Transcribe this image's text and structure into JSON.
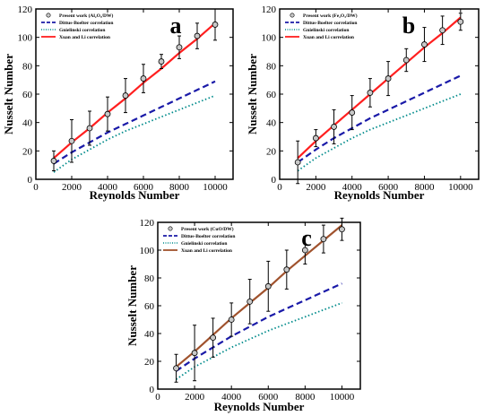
{
  "colors": {
    "xuan_li": "#ff1f1f",
    "xuan_li_c": "#a0522d",
    "dittus": "#1a1aa8",
    "gnielinski": "#008b8b",
    "marker": "#c8c8c8",
    "axis": "#000000"
  },
  "chart_data": [
    {
      "type": "line",
      "panel_letter": "a",
      "xlabel": "Reynolds Number",
      "ylabel": "Nusselt Number",
      "xlim": [
        0,
        11000
      ],
      "ylim": [
        0,
        120
      ],
      "xticks": [
        0,
        2000,
        4000,
        6000,
        8000,
        10000
      ],
      "yticks": [
        0,
        20,
        40,
        60,
        80,
        100,
        120
      ],
      "legend_position": "top-left",
      "series": [
        {
          "name": "Present work (Al₂O₃/DW)",
          "style": "markers-errorbars",
          "x": [
            1000,
            2000,
            3000,
            4000,
            5000,
            6000,
            7000,
            8000,
            9000,
            10000
          ],
          "values": [
            13,
            27,
            36,
            46,
            59,
            71,
            83,
            93,
            101,
            109
          ],
          "err": [
            7,
            15,
            12,
            12,
            12,
            10,
            5,
            8,
            9,
            11
          ]
        },
        {
          "name": "Dittus-Boelter correlation",
          "style": "dashed",
          "x": [
            1000,
            2000,
            3000,
            4000,
            5000,
            6000,
            7000,
            8000,
            9000,
            10000
          ],
          "values": [
            11,
            19,
            26,
            33,
            39,
            45,
            51,
            57,
            63,
            69
          ]
        },
        {
          "name": "Gnielinski correlation",
          "style": "dotted",
          "x": [
            1000,
            2000,
            3000,
            4000,
            5000,
            6000,
            7000,
            8000,
            9000,
            10000
          ],
          "values": [
            5,
            14,
            21,
            28,
            34,
            39,
            44,
            49,
            54,
            59
          ]
        },
        {
          "name": "Xuan and Li correlation",
          "style": "solid",
          "x": [
            1000,
            2000,
            3000,
            4000,
            5000,
            6000,
            7000,
            8000,
            9000,
            10000
          ],
          "values": [
            15,
            26,
            36,
            47,
            57,
            68,
            78,
            89,
            99,
            110
          ]
        }
      ]
    },
    {
      "type": "line",
      "panel_letter": "b",
      "xlabel": "Reynolds Number",
      "ylabel": "Nusselt Number",
      "xlim": [
        0,
        11000
      ],
      "ylim": [
        0,
        120
      ],
      "xticks": [
        0,
        2000,
        4000,
        6000,
        8000,
        10000
      ],
      "yticks": [
        0,
        20,
        40,
        60,
        80,
        100,
        120
      ],
      "legend_position": "top-left",
      "series": [
        {
          "name": "Present work (Fe₂O₃/DW)",
          "style": "markers-errorbars",
          "x": [
            1000,
            2000,
            3000,
            4000,
            5000,
            6000,
            7000,
            8000,
            9000,
            10000
          ],
          "values": [
            12,
            29,
            37,
            47,
            61,
            71,
            84,
            95,
            105,
            111
          ],
          "err": [
            15,
            6,
            12,
            12,
            10,
            12,
            8,
            12,
            10,
            6
          ]
        },
        {
          "name": "Dittus-Boelter correlation",
          "style": "dashed",
          "x": [
            1000,
            2000,
            3000,
            4000,
            5000,
            6000,
            7000,
            8000,
            9000,
            10000
          ],
          "values": [
            12,
            21,
            29,
            36,
            43,
            49,
            55,
            61,
            67,
            73
          ]
        },
        {
          "name": "Gnielinski correlation",
          "style": "dotted",
          "x": [
            1000,
            2000,
            3000,
            4000,
            5000,
            6000,
            7000,
            8000,
            9000,
            10000
          ],
          "values": [
            6,
            15,
            22,
            29,
            35,
            40,
            45,
            50,
            55,
            60
          ]
        },
        {
          "name": "Xuan and Li correlation",
          "style": "solid",
          "x": [
            1000,
            2000,
            3000,
            4000,
            5000,
            6000,
            7000,
            8000,
            9000,
            10000
          ],
          "values": [
            15,
            27,
            38,
            49,
            60,
            71,
            82,
            93,
            103,
            114
          ]
        }
      ]
    },
    {
      "type": "line",
      "panel_letter": "c",
      "xlabel": "Reynolds Number",
      "ylabel": "Nusselt Number",
      "xlim": [
        0,
        11000
      ],
      "ylim": [
        0,
        120
      ],
      "xticks": [
        0,
        2000,
        4000,
        6000,
        8000,
        10000
      ],
      "yticks": [
        0,
        20,
        40,
        60,
        80,
        100,
        120
      ],
      "legend_position": "top-left",
      "series": [
        {
          "name": "Present work (CuO/DW)",
          "style": "markers-errorbars",
          "x": [
            1000,
            2000,
            3000,
            4000,
            5000,
            6000,
            7000,
            8000,
            9000,
            10000
          ],
          "values": [
            15,
            26,
            37,
            50,
            63,
            74,
            86,
            100,
            108,
            115
          ],
          "err": [
            10,
            20,
            14,
            12,
            16,
            18,
            14,
            10,
            10,
            8
          ]
        },
        {
          "name": "Dittus-Boelter correlation",
          "style": "dashed",
          "x": [
            1000,
            2000,
            3000,
            4000,
            5000,
            6000,
            7000,
            8000,
            9000,
            10000
          ],
          "values": [
            13,
            22,
            30,
            38,
            45,
            52,
            58,
            64,
            70,
            76
          ]
        },
        {
          "name": "Gnielinski correlation",
          "style": "dotted",
          "x": [
            1000,
            2000,
            3000,
            4000,
            5000,
            6000,
            7000,
            8000,
            9000,
            10000
          ],
          "values": [
            7,
            16,
            23,
            30,
            36,
            42,
            47,
            52,
            57,
            62
          ]
        },
        {
          "name": "Xuan and Li correlation",
          "style": "solid",
          "x": [
            1000,
            2000,
            3000,
            4000,
            5000,
            6000,
            7000,
            8000,
            9000,
            10000
          ],
          "values": [
            16,
            27,
            39,
            51,
            62,
            73,
            85,
            96,
            107,
            118
          ]
        }
      ]
    }
  ]
}
